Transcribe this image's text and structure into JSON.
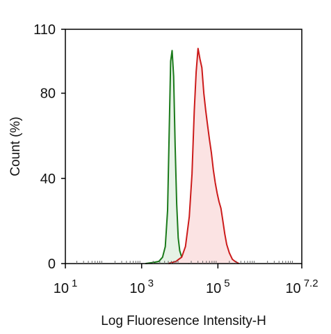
{
  "chart_data": {
    "type": "area",
    "title": "",
    "xlabel": "Log Fluoresence Intensity-H",
    "ylabel": "Count  (%)",
    "xscale": "log",
    "xlim": [
      1,
      7.2
    ],
    "ylim": [
      0,
      110
    ],
    "x_ticks": [
      {
        "value": 1,
        "base": "10",
        "exp": "1"
      },
      {
        "value": 3,
        "base": "10",
        "exp": "3"
      },
      {
        "value": 5,
        "base": "10",
        "exp": "5"
      },
      {
        "value": 7.2,
        "base": "10",
        "exp": "7.2"
      }
    ],
    "y_ticks": [
      {
        "value": 0,
        "label": "0"
      },
      {
        "value": 40,
        "label": "40"
      },
      {
        "value": 80,
        "label": "80"
      },
      {
        "value": 110,
        "label": "110"
      }
    ],
    "grid": false,
    "legend": "none",
    "series": [
      {
        "color": "#1a7a1a",
        "fill": "#e6f2e6",
        "x": [
          3.1,
          3.3,
          3.45,
          3.55,
          3.62,
          3.68,
          3.72,
          3.76,
          3.8,
          3.84,
          3.88,
          3.92,
          3.96,
          4.0,
          4.05,
          4.1,
          4.18,
          4.25
        ],
        "y": [
          0,
          0.5,
          1,
          3,
          8,
          25,
          60,
          95,
          100,
          88,
          55,
          28,
          12,
          6,
          3,
          1,
          0.5,
          0
        ]
      },
      {
        "color": "#cc1a1a",
        "fill": "#fbe3e3",
        "x": [
          3.7,
          3.9,
          4.05,
          4.15,
          4.25,
          4.32,
          4.38,
          4.43,
          4.48,
          4.53,
          4.58,
          4.63,
          4.68,
          4.73,
          4.78,
          4.83,
          4.88,
          4.93,
          4.98,
          5.03,
          5.08,
          5.13,
          5.18,
          5.23,
          5.3,
          5.38,
          5.45,
          5.55
        ],
        "y": [
          0,
          1,
          3,
          8,
          22,
          42,
          72,
          90,
          101,
          96,
          92,
          80,
          72,
          65,
          58,
          52,
          44,
          38,
          33,
          29,
          26,
          20,
          14,
          9,
          5,
          2,
          1,
          0
        ]
      }
    ]
  }
}
